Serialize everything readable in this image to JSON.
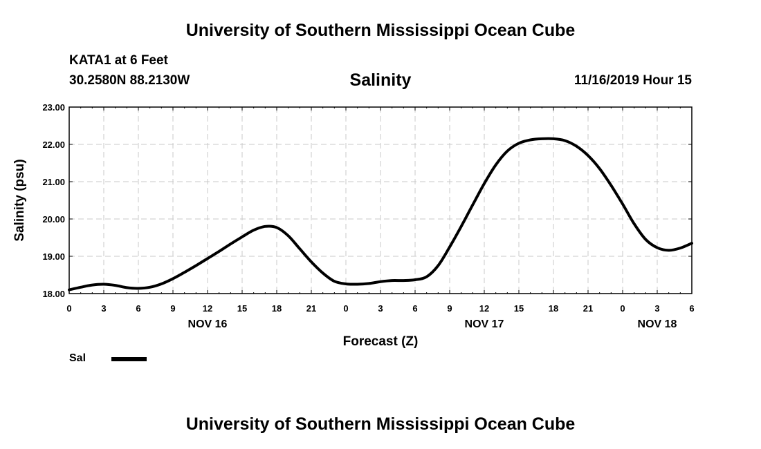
{
  "header": {
    "org_title": "University of Southern Mississippi Ocean Cube",
    "station": "KATA1 at 6 Feet",
    "coordinates": "30.2580N 88.2130W",
    "variable_title": "Salinity",
    "datetime": "11/16/2019 Hour 15"
  },
  "footer": {
    "org_title": "University of Southern Mississippi Ocean Cube"
  },
  "legend": {
    "label": "Sal",
    "color": "#000000"
  },
  "chart_data": {
    "type": "line",
    "title": "Salinity",
    "xlabel": "Forecast (Z)",
    "ylabel": "Salinity (psu)",
    "xlim": [
      0,
      54
    ],
    "ylim": [
      18.0,
      23.0
    ],
    "grid": true,
    "y_ticks": [
      "18.00",
      "19.00",
      "20.00",
      "21.00",
      "22.00",
      "23.00"
    ],
    "x_ticks": [
      "0",
      "3",
      "6",
      "9",
      "12",
      "15",
      "18",
      "21",
      "0",
      "3",
      "6",
      "9",
      "12",
      "15",
      "18",
      "21",
      "0",
      "3",
      "6"
    ],
    "date_labels": [
      {
        "label": "NOV 16",
        "hour": 12
      },
      {
        "label": "NOV 17",
        "hour": 36
      },
      {
        "label": "NOV 18",
        "hour": 51
      }
    ],
    "series": [
      {
        "name": "Sal",
        "color": "#000000",
        "x": [
          0,
          1,
          2,
          3,
          4,
          5,
          6,
          7,
          8,
          9,
          10,
          11,
          12,
          13,
          14,
          15,
          16,
          17,
          18,
          19,
          20,
          21,
          22,
          23,
          24,
          25,
          26,
          27,
          28,
          29,
          30,
          31,
          32,
          33,
          34,
          35,
          36,
          37,
          38,
          39,
          40,
          41,
          42,
          43,
          44,
          45,
          46,
          47,
          48,
          49,
          50,
          51,
          52,
          53,
          54
        ],
        "values": [
          18.1,
          18.17,
          18.23,
          18.25,
          18.22,
          18.16,
          18.14,
          18.17,
          18.26,
          18.4,
          18.57,
          18.75,
          18.94,
          19.13,
          19.33,
          19.52,
          19.7,
          19.8,
          19.77,
          19.55,
          19.2,
          18.85,
          18.55,
          18.33,
          18.26,
          18.25,
          18.27,
          18.32,
          18.35,
          18.35,
          18.37,
          18.45,
          18.75,
          19.25,
          19.8,
          20.38,
          20.95,
          21.45,
          21.82,
          22.03,
          22.12,
          22.15,
          22.15,
          22.1,
          21.95,
          21.7,
          21.35,
          20.9,
          20.4,
          19.87,
          19.45,
          19.23,
          19.16,
          19.22,
          19.35
        ]
      }
    ]
  }
}
